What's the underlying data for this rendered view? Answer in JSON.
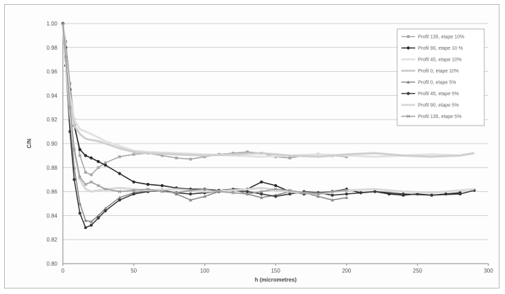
{
  "chart_data": {
    "type": "line",
    "title": "",
    "xlabel": "h (micrometres)",
    "ylabel": "C/N",
    "xlim": [
      0,
      300
    ],
    "ylim": [
      0.8,
      1.0
    ],
    "x_ticks": [
      "0",
      "50",
      "100",
      "150",
      "200",
      "250",
      "300"
    ],
    "y_ticks": [
      "0.80",
      "0.82",
      "0.84",
      "0.86",
      "0.88",
      "0.90",
      "0.92",
      "0.94",
      "0.96",
      "0.98",
      "1.00"
    ],
    "grid": true,
    "legend_position": "top-right",
    "series": [
      {
        "name": "Profil 135, etape 10%",
        "color": "#a8a8a8",
        "marker": "square",
        "x": [
          0,
          2,
          5,
          8,
          12,
          16,
          20,
          25,
          30,
          40,
          50,
          60,
          70,
          80,
          90,
          100,
          110,
          120,
          130,
          140,
          150,
          160,
          170,
          180,
          190,
          200
        ],
        "y": [
          1.0,
          0.985,
          0.95,
          0.92,
          0.89,
          0.876,
          0.874,
          0.88,
          0.884,
          0.889,
          0.891,
          0.892,
          0.89,
          0.888,
          0.887,
          0.889,
          0.891,
          0.892,
          0.893,
          0.892,
          0.889,
          0.888,
          0.89,
          0.891,
          0.89,
          0.889
        ]
      },
      {
        "name": "Profil 90, etape 10 %",
        "color": "#2a2a2a",
        "marker": "circle",
        "x": [
          0,
          2,
          5,
          8,
          12,
          16,
          20,
          25,
          30,
          40,
          50,
          60,
          70,
          80,
          90,
          100,
          110,
          120,
          130,
          140,
          150,
          160,
          170,
          180,
          190,
          200,
          210,
          220,
          230,
          240,
          250,
          260,
          270,
          280
        ],
        "y": [
          1.0,
          0.98,
          0.945,
          0.915,
          0.895,
          0.89,
          0.888,
          0.885,
          0.882,
          0.875,
          0.868,
          0.866,
          0.865,
          0.863,
          0.862,
          0.862,
          0.861,
          0.862,
          0.862,
          0.868,
          0.865,
          0.86,
          0.858,
          0.859,
          0.86,
          0.862,
          0.859,
          0.86,
          0.858,
          0.857,
          0.858,
          0.857,
          0.858,
          0.859
        ]
      },
      {
        "name": "Profil 45, etape 10%",
        "color": "#e2e2e2",
        "marker": "none",
        "x": [
          0,
          2,
          5,
          8,
          12,
          16,
          20,
          25,
          30,
          40,
          50,
          60,
          80,
          100,
          120,
          140,
          160,
          180,
          200,
          220,
          240,
          260,
          280
        ],
        "y": [
          1.0,
          0.975,
          0.94,
          0.92,
          0.912,
          0.91,
          0.908,
          0.905,
          0.902,
          0.898,
          0.894,
          0.893,
          0.892,
          0.891,
          0.89,
          0.889,
          0.89,
          0.891,
          0.89,
          0.889,
          0.89,
          0.891,
          0.89
        ]
      },
      {
        "name": "Profil 0, etape 10%",
        "color": "#cfcfcf",
        "marker": "none",
        "x": [
          0,
          2,
          5,
          8,
          12,
          16,
          20,
          25,
          30,
          40,
          50,
          60,
          80,
          100,
          120,
          140,
          160,
          180,
          200,
          220,
          240,
          260,
          280,
          290
        ],
        "y": [
          1.0,
          0.97,
          0.935,
          0.915,
          0.908,
          0.904,
          0.903,
          0.902,
          0.9,
          0.896,
          0.893,
          0.892,
          0.891,
          0.89,
          0.891,
          0.892,
          0.89,
          0.889,
          0.891,
          0.892,
          0.89,
          0.889,
          0.89,
          0.892
        ]
      },
      {
        "name": "Profil 0, etape 5%",
        "color": "#8a8a8a",
        "marker": "triangle",
        "x": [
          0,
          2,
          5,
          8,
          12,
          16,
          20,
          25,
          30,
          40,
          50,
          60,
          70,
          80,
          90,
          100,
          110,
          120,
          130,
          140,
          150,
          160,
          170,
          180,
          190,
          200
        ],
        "y": [
          1.0,
          0.97,
          0.92,
          0.88,
          0.85,
          0.836,
          0.835,
          0.84,
          0.846,
          0.855,
          0.859,
          0.861,
          0.862,
          0.858,
          0.853,
          0.856,
          0.86,
          0.862,
          0.858,
          0.855,
          0.857,
          0.86,
          0.859,
          0.856,
          0.853,
          0.855
        ]
      },
      {
        "name": "Profil 45, etape 5%",
        "color": "#3a3a3a",
        "marker": "circle",
        "x": [
          0,
          2,
          5,
          8,
          12,
          16,
          20,
          25,
          30,
          40,
          50,
          60,
          70,
          80,
          90,
          100,
          110,
          120,
          130,
          140,
          150,
          160,
          170,
          180,
          190,
          200,
          220,
          240,
          260,
          280,
          290
        ],
        "y": [
          1.0,
          0.965,
          0.91,
          0.87,
          0.842,
          0.83,
          0.832,
          0.838,
          0.844,
          0.853,
          0.858,
          0.86,
          0.861,
          0.859,
          0.858,
          0.859,
          0.86,
          0.861,
          0.86,
          0.858,
          0.856,
          0.858,
          0.86,
          0.859,
          0.857,
          0.858,
          0.86,
          0.858,
          0.857,
          0.858,
          0.861
        ]
      },
      {
        "name": "Profil 90, etape 5%",
        "color": "#d8d8d8",
        "marker": "none",
        "x": [
          0,
          2,
          5,
          8,
          12,
          16,
          20,
          25,
          30,
          40,
          50,
          60,
          80,
          100,
          120,
          140,
          160,
          180,
          200,
          220,
          240,
          260,
          280,
          290
        ],
        "y": [
          1.0,
          0.968,
          0.925,
          0.895,
          0.87,
          0.862,
          0.86,
          0.861,
          0.862,
          0.863,
          0.862,
          0.861,
          0.862,
          0.86,
          0.861,
          0.863,
          0.86,
          0.858,
          0.861,
          0.862,
          0.86,
          0.859,
          0.861,
          0.862
        ]
      },
      {
        "name": "Profil 135, etape 5%",
        "color": "#9a9a9a",
        "marker": "cross",
        "x": [
          0,
          2,
          5,
          8,
          12,
          16,
          20,
          25,
          30,
          40,
          50,
          60,
          70,
          80,
          90,
          100,
          110,
          120,
          130,
          140,
          150,
          160,
          170,
          180,
          190,
          200
        ],
        "y": [
          1.0,
          0.972,
          0.93,
          0.895,
          0.872,
          0.866,
          0.868,
          0.865,
          0.862,
          0.86,
          0.861,
          0.862,
          0.86,
          0.859,
          0.861,
          0.862,
          0.86,
          0.859,
          0.858,
          0.86,
          0.862,
          0.861,
          0.859,
          0.858,
          0.86,
          0.861
        ]
      }
    ]
  }
}
